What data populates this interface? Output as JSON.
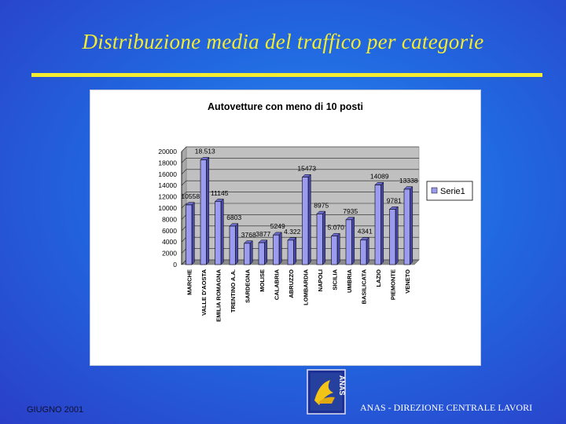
{
  "slide": {
    "title": "Distribuzione media del traffico per categorie",
    "footer_left": "GIUGNO 2001",
    "footer_right": "ANAS - DIREZIONE CENTRALE LAVORI",
    "logo_text": "ANAS"
  },
  "colors": {
    "title": "#f4ec30",
    "bar_front": "#9b9bf0",
    "bar_side": "#4848a8",
    "plot_back": "#c0c0c0"
  },
  "chart_data": {
    "type": "bar",
    "title": "Autovetture con meno di 10 posti",
    "legend": {
      "position": "right",
      "entries": [
        "Serie1"
      ]
    },
    "xlabel": "",
    "ylabel": "",
    "ylim": [
      0,
      20000
    ],
    "yticks": [
      0,
      2000,
      4000,
      6000,
      8000,
      10000,
      12000,
      14000,
      16000,
      18000,
      20000
    ],
    "grid": true,
    "categories": [
      "MARCHE",
      "VALLE D'AOSTA",
      "EMILIA ROMAGNA",
      "TRENTINO A.A.",
      "SARDEGNA",
      "MOLISE",
      "CALABRIA",
      "ABRUZZO",
      "LOMBARDIA",
      "NAPOLI",
      "SICILIA",
      "UMBRIA",
      "BASILICATA",
      "LAZIO",
      "PIEMONTE",
      "VENETO"
    ],
    "series": [
      {
        "name": "Serie1",
        "values": [
          10558,
          18513,
          11145,
          6803,
          3768,
          3877,
          5249,
          4322,
          15473,
          8975,
          5070,
          7935,
          4341,
          14089,
          9781,
          13338
        ],
        "labels": [
          "10558",
          "18.513",
          "11145",
          "6803",
          "3768",
          "3877",
          "5249",
          "4.322",
          "15473",
          "8975",
          "5.070",
          "7935",
          "4341",
          "14089",
          "9781",
          "13338"
        ]
      }
    ]
  }
}
